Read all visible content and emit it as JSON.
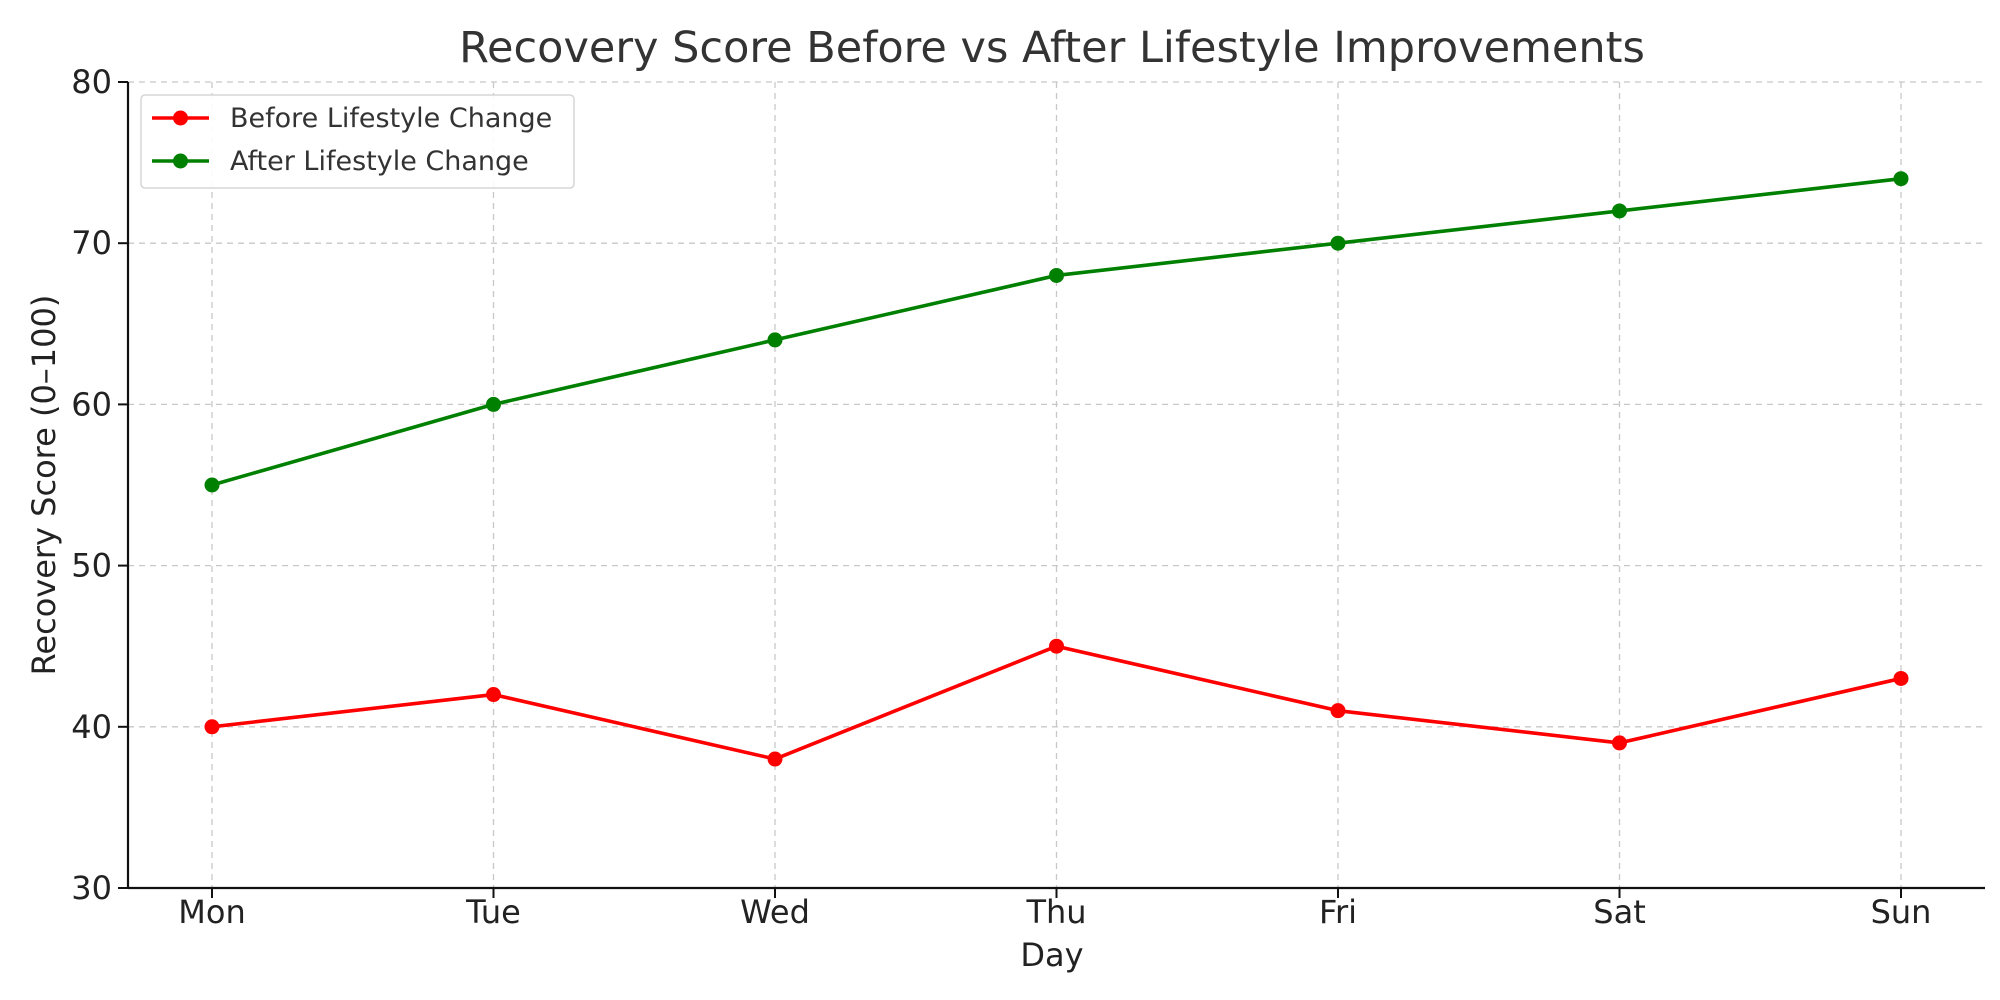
{
  "chart_data": {
    "type": "line",
    "title": "Recovery Score Before vs After Lifestyle Improvements",
    "xlabel": "Day",
    "ylabel": "Recovery Score (0–100)",
    "categories": [
      "Mon",
      "Tue",
      "Wed",
      "Thu",
      "Fri",
      "Sat",
      "Sun"
    ],
    "ylim": [
      30,
      80
    ],
    "yticks": [
      30,
      40,
      50,
      60,
      70,
      80
    ],
    "grid": true,
    "legend_position": "top-left",
    "series": [
      {
        "name": "Before Lifestyle Change",
        "color": "#ff0000",
        "marker": "circle",
        "values": [
          40,
          42,
          38,
          45,
          41,
          39,
          43
        ]
      },
      {
        "name": "After Lifestyle Change",
        "color": "#008000",
        "marker": "circle",
        "values": [
          55,
          60,
          64,
          68,
          70,
          72,
          74
        ]
      }
    ]
  }
}
